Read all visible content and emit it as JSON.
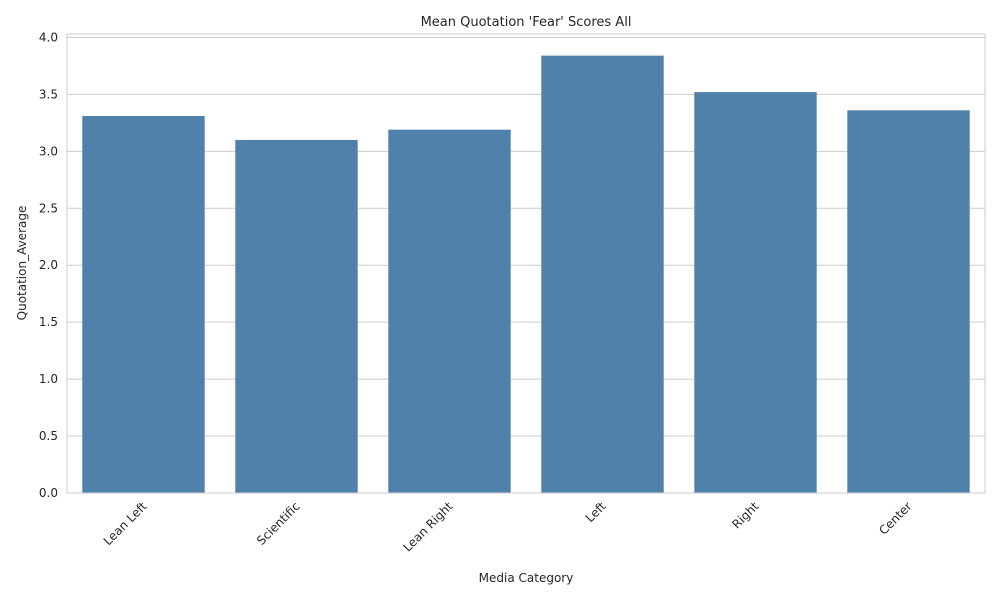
{
  "chart_data": {
    "type": "bar",
    "title": "Mean Quotation 'Fear' Scores All",
    "xlabel": "Media Category",
    "ylabel": "Quotation_Average",
    "categories": [
      "Lean Left",
      "Scientific",
      "Lean Right",
      "Left",
      "Right",
      "Center"
    ],
    "values": [
      3.31,
      3.1,
      3.19,
      3.84,
      3.52,
      3.36
    ],
    "ylim": [
      0,
      4.03
    ],
    "yticks": [
      0.0,
      0.5,
      1.0,
      1.5,
      2.0,
      2.5,
      3.0,
      3.5,
      4.0
    ],
    "ytick_labels": [
      "0.0",
      "0.5",
      "1.0",
      "1.5",
      "2.0",
      "2.5",
      "3.0",
      "3.5",
      "4.0"
    ],
    "grid": true,
    "bar_color": "#4f81aa",
    "legend": null
  }
}
